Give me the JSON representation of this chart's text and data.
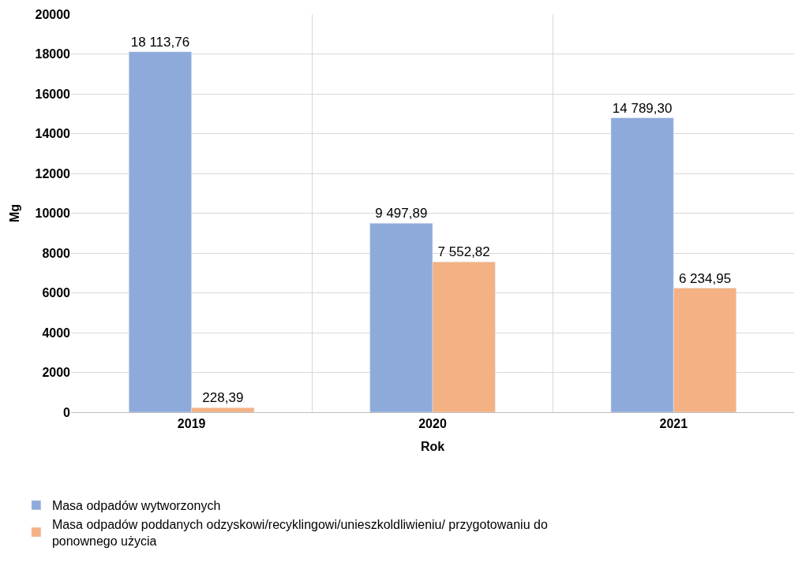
{
  "chart_data": {
    "type": "bar",
    "xlabel": "Rok",
    "ylabel": "Mg",
    "categories": [
      "2019",
      "2020",
      "2021"
    ],
    "series": [
      {
        "name": "Masa odpadów wytworzonych",
        "color": "#8eaadb",
        "values": [
          18113.76,
          9497.89,
          14789.3
        ],
        "value_labels": [
          "18 113,76",
          "9 497,89",
          "14 789,30"
        ]
      },
      {
        "name": "Masa odpadów poddanych odzyskowi/recyklingowi/unieszkoldliwieniu/ przygotowaniu do ponownego użycia",
        "color": "#f4b183",
        "values": [
          228.39,
          7552.82,
          6234.95
        ],
        "value_labels": [
          "228,39",
          "7 552,82",
          "6 234,95"
        ]
      }
    ],
    "ylim": [
      0,
      20000
    ],
    "yticks": [
      0,
      2000,
      4000,
      6000,
      8000,
      10000,
      12000,
      14000,
      16000,
      18000,
      20000
    ],
    "grid": true,
    "legend": "bottom"
  }
}
